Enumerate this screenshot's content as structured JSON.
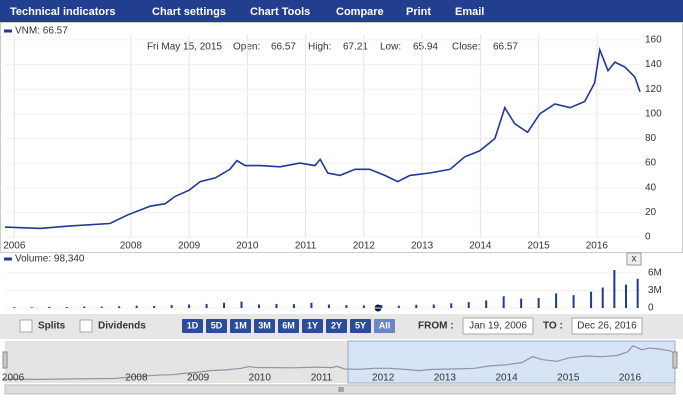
{
  "menu": [
    "Technical indicators",
    "Chart settings",
    "Chart Tools",
    "Compare",
    "Print",
    "Email"
  ],
  "chart_data": [
    {
      "type": "line",
      "info": {
        "date": "Fri May 15, 2015",
        "fields": [
          {
            "label": "Open:",
            "value": 66.57
          },
          {
            "label": "High:",
            "value": 67.21
          },
          {
            "label": "Low:",
            "value": 65.94
          },
          {
            "label": "Close:",
            "value": 66.57
          }
        ]
      },
      "series": [
        {
          "name": "VNM: 66.57",
          "color": "#1f3a93",
          "x": [
            2005.84,
            2006.44,
            2006.96,
            2007.64,
            2007.95,
            2008.33,
            2008.59,
            2008.76,
            2009.0,
            2009.19,
            2009.45,
            2009.7,
            2009.82,
            2009.96,
            2010.22,
            2010.56,
            2010.9,
            2011.16,
            2011.25,
            2011.38,
            2011.59,
            2011.85,
            2012.1,
            2012.36,
            2012.58,
            2012.79,
            2013.13,
            2013.48,
            2013.73,
            2013.99,
            2014.25,
            2014.42,
            2014.59,
            2014.81,
            2015.02,
            2015.28,
            2015.54,
            2015.79,
            2015.96,
            2016.05,
            2016.19,
            2016.31,
            2016.48,
            2016.65,
            2016.74
          ],
          "values": [
            8,
            7,
            9,
            11,
            18,
            25,
            27,
            33,
            38,
            45,
            48,
            55,
            62,
            58,
            58,
            57,
            60,
            58,
            63,
            52,
            50,
            55,
            55,
            50,
            45,
            50,
            52,
            55,
            65,
            70,
            80,
            105,
            92,
            85,
            100,
            108,
            105,
            110,
            125,
            152,
            135,
            142,
            138,
            130,
            118
          ]
        }
      ],
      "xlim": [
        2005.84,
        2016.74
      ],
      "xticks": [
        2006,
        2008,
        2009,
        2010,
        2011,
        2012,
        2013,
        2014,
        2015,
        2016
      ],
      "ylim": [
        0,
        164
      ],
      "yticks": [
        0,
        20,
        40,
        60,
        80,
        100,
        120,
        140,
        160
      ],
      "grid": true
    },
    {
      "type": "bar",
      "series": [
        {
          "name": "Volume: 98,340",
          "color": "#1f3a93",
          "x": [
            2006.0,
            2006.3,
            2006.6,
            2006.9,
            2007.2,
            2007.5,
            2007.8,
            2008.1,
            2008.4,
            2008.7,
            2009.0,
            2009.3,
            2009.6,
            2009.9,
            2010.2,
            2010.5,
            2010.8,
            2011.1,
            2011.4,
            2011.7,
            2012.0,
            2012.3,
            2012.6,
            2012.9,
            2013.2,
            2013.5,
            2013.8,
            2014.1,
            2014.4,
            2014.7,
            2015.0,
            2015.3,
            2015.6,
            2015.9,
            2016.1,
            2016.3,
            2016.5,
            2016.7
          ],
          "values": [
            150000,
            120000,
            200000,
            180000,
            250000,
            220000,
            300000,
            400000,
            350000,
            500000,
            600000,
            700000,
            900000,
            1100000,
            600000,
            700000,
            650000,
            900000,
            600000,
            500000,
            450000,
            500000,
            400000,
            550000,
            600000,
            800000,
            1000000,
            1300000,
            2000000,
            1600000,
            1700000,
            2500000,
            2200000,
            2800000,
            3500000,
            6500000,
            4000000,
            5000000
          ]
        }
      ],
      "xlim": [
        2005.84,
        2016.74
      ],
      "ylim": [
        0,
        7700000
      ],
      "yticks": [
        0,
        {
          "value": 3000000,
          "label": "3M"
        },
        {
          "value": 6000000,
          "label": "6M"
        }
      ]
    }
  ],
  "controls": {
    "close": "x",
    "splits": "Splits",
    "dividends": "Dividends",
    "ranges": [
      "1D",
      "5D",
      "1M",
      "3M",
      "6M",
      "1Y",
      "2Y",
      "5Y",
      "All"
    ],
    "from_label": "FROM :",
    "from": "Jan 19, 2006",
    "to_label": "TO :",
    "to": "Dec 26, 2016"
  },
  "navigator": {
    "xlim": [
      2005.87,
      2016.73
    ],
    "ylim": [
      0,
      164
    ],
    "xticks": [
      2006,
      2008,
      2009,
      2010,
      2011,
      2012,
      2013,
      2014,
      2015,
      2016
    ],
    "handle": "III"
  }
}
